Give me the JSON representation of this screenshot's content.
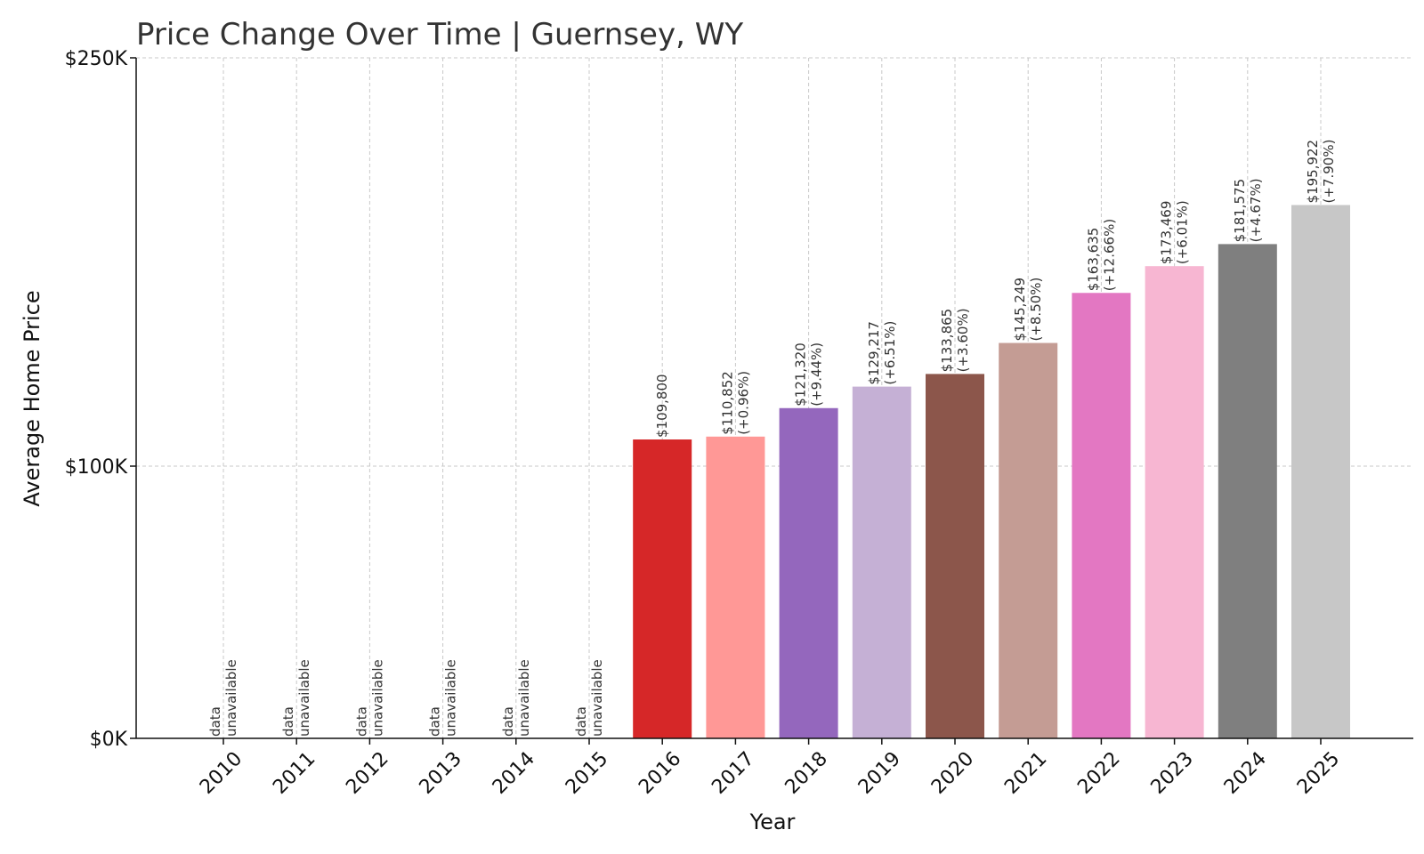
{
  "chart_data": {
    "type": "bar",
    "title": "Price Change Over Time | Guernsey, WY",
    "xlabel": "Year",
    "ylabel": "Average Home Price",
    "ylim": [
      0,
      250000
    ],
    "yticks": [
      {
        "value": 0,
        "label": "$0K"
      },
      {
        "value": 100000,
        "label": "$100K"
      },
      {
        "value": 250000,
        "label": "$250K"
      }
    ],
    "grid": true,
    "categories": [
      "2010",
      "2011",
      "2012",
      "2013",
      "2014",
      "2015",
      "2016",
      "2017",
      "2018",
      "2019",
      "2020",
      "2021",
      "2022",
      "2023",
      "2024",
      "2025"
    ],
    "values": [
      null,
      null,
      null,
      null,
      null,
      null,
      109800,
      110852,
      121320,
      129217,
      133865,
      145249,
      163635,
      173469,
      181575,
      195922
    ],
    "labels": [
      [
        "data",
        "unavailable"
      ],
      [
        "data",
        "unavailable"
      ],
      [
        "data",
        "unavailable"
      ],
      [
        "data",
        "unavailable"
      ],
      [
        "data",
        "unavailable"
      ],
      [
        "data",
        "unavailable"
      ],
      [
        "$109,800"
      ],
      [
        "$110,852",
        "(+0.96%)"
      ],
      [
        "$121,320",
        "(+9.44%)"
      ],
      [
        "$129,217",
        "(+6.51%)"
      ],
      [
        "$133,865",
        "(+3.60%)"
      ],
      [
        "$145,249",
        "(+8.50%)"
      ],
      [
        "$163,635",
        "(+12.66%)"
      ],
      [
        "$173,469",
        "(+6.01%)"
      ],
      [
        "$181,575",
        "(+4.67%)"
      ],
      [
        "$195,922",
        "(+7.90%)"
      ]
    ],
    "colors": [
      null,
      null,
      null,
      null,
      null,
      null,
      "#d62728",
      "#ff9896",
      "#9467bd",
      "#c5b0d5",
      "#8c564b",
      "#c49c94",
      "#e377c2",
      "#f7b6d2",
      "#7f7f7f",
      "#c7c7c7"
    ]
  }
}
